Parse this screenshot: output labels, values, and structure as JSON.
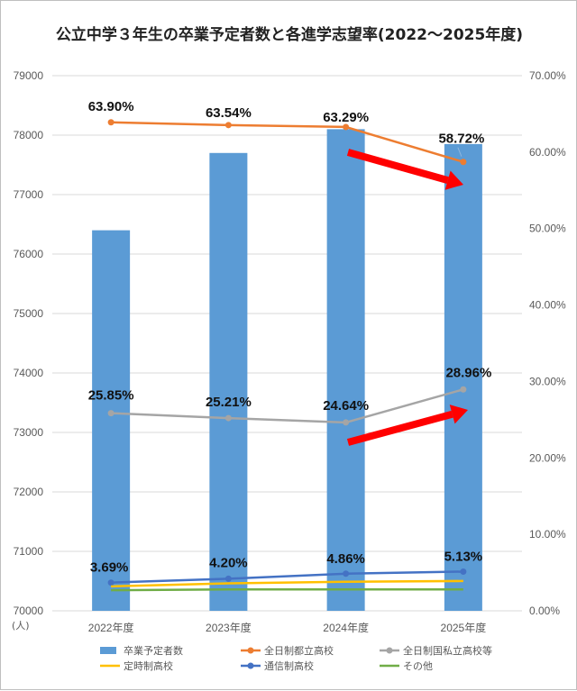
{
  "chart_data": {
    "type": "bar",
    "title": "公立中学３年生の卒業予定者数と各進学志望率(2022～2025年度)",
    "categories": [
      "2022年度",
      "2023年度",
      "2024年度",
      "2025年度"
    ],
    "y_left": {
      "unit_label": "(人)",
      "range": [
        70000,
        79000
      ],
      "ticks": [
        "70000",
        "71000",
        "72000",
        "73000",
        "74000",
        "75000",
        "76000",
        "77000",
        "78000",
        "79000"
      ],
      "grid": true
    },
    "y_right": {
      "range": [
        0,
        70
      ],
      "ticks": [
        "0.00%",
        "10.00%",
        "20.00%",
        "30.00%",
        "40.00%",
        "50.00%",
        "60.00%",
        "70.00%"
      ]
    },
    "bar_series": {
      "name": "卒業予定者数",
      "color": "#5b9bd5",
      "values": [
        76400,
        77700,
        78100,
        77850
      ]
    },
    "line_series": [
      {
        "name": "全日制都立高校",
        "color": "#ed7d31",
        "values": [
          63.9,
          63.54,
          63.29,
          58.72
        ],
        "labels": [
          "63.90%",
          "63.54%",
          "63.29%",
          "58.72%"
        ]
      },
      {
        "name": "全日制国私立高校等",
        "color": "#a5a5a5",
        "values": [
          25.85,
          25.21,
          24.64,
          28.96
        ],
        "labels": [
          "25.85%",
          "25.21%",
          "24.64%",
          "28.96%"
        ]
      },
      {
        "name": "定時制高校",
        "color": "#ffc000",
        "values": [
          3.2,
          3.6,
          3.8,
          3.9
        ],
        "labels": []
      },
      {
        "name": "通信制高校",
        "color": "#4472c4",
        "values": [
          3.69,
          4.2,
          4.86,
          5.13
        ],
        "labels": [
          "3.69%",
          "4.20%",
          "4.86%",
          "5.13%"
        ]
      },
      {
        "name": "その他",
        "color": "#70ad47",
        "values": [
          2.7,
          2.8,
          2.8,
          2.8
        ],
        "labels": []
      }
    ],
    "legend_position": "bottom",
    "annotations": [
      {
        "kind": "arrow",
        "meaning": "decrease",
        "color": "#ff0000"
      },
      {
        "kind": "arrow",
        "meaning": "increase",
        "color": "#ff0000"
      }
    ]
  }
}
